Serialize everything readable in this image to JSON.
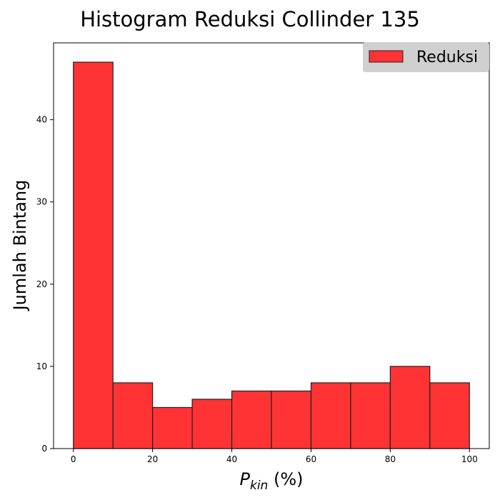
{
  "chart_data": {
    "type": "bar",
    "title": "Histogram Reduksi Collinder 135",
    "xlabel": {
      "symbol": "P",
      "subscript": "kin",
      "unit": " (%)"
    },
    "ylabel": "Jumlah Bintang",
    "bin_edges": [
      0,
      10,
      20,
      30,
      40,
      50,
      60,
      70,
      80,
      90,
      100
    ],
    "series": [
      {
        "name": "Reduksi",
        "color": "#ff3333",
        "edgecolor": "#222222",
        "values": [
          47,
          8,
          5,
          6,
          7,
          7,
          8,
          8,
          10,
          8
        ]
      }
    ],
    "xlim": [
      -5,
      105
    ],
    "ylim": [
      0,
      49.35
    ],
    "xticks": [
      0,
      20,
      40,
      60,
      80,
      100
    ],
    "yticks": [
      0,
      10,
      20,
      30,
      40
    ],
    "grid": false,
    "legend_position": "top-right"
  }
}
